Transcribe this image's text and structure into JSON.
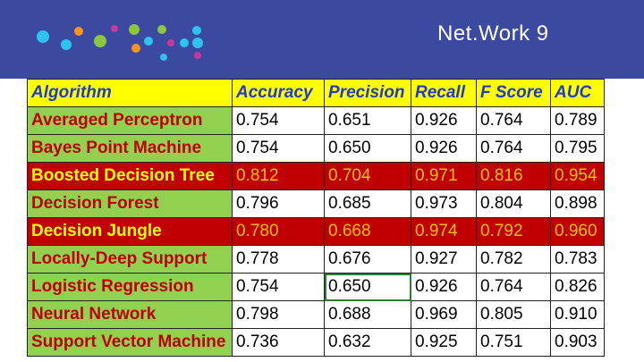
{
  "slide": {
    "title": "Net.Work 9",
    "dot_colors": [
      "#2ec4ef",
      "#2ec4ef",
      "#f7941d",
      "#8dc63f",
      "#c43b9b",
      "#8dc63f",
      "#f7941d",
      "#2ec4ef",
      "#8dc63f",
      "#2ec4ef",
      "#c43b9b",
      "#2ec4ef",
      "#2ec4ef",
      "#2ec4ef",
      "#c43b9b"
    ]
  },
  "table": {
    "headers": [
      "Algorithm",
      "Accuracy",
      "Precision",
      "Recall",
      "F Score",
      "AUC"
    ],
    "rows": [
      {
        "algorithm": "Averaged Perceptron",
        "accuracy": "0.754",
        "precision": "0.651",
        "recall": "0.926",
        "fscore": "0.764",
        "auc": "0.789"
      },
      {
        "algorithm": "Bayes Point Machine",
        "accuracy": "0.754",
        "precision": "0.650",
        "recall": "0.926",
        "fscore": "0.764",
        "auc": "0.795"
      },
      {
        "algorithm": "Boosted Decision Tree",
        "accuracy": "0.812",
        "precision": "0.704",
        "recall": "0.971",
        "fscore": "0.816",
        "auc": "0.954"
      },
      {
        "algorithm": "Decision Forest",
        "accuracy": "0.796",
        "precision": "0.685",
        "recall": "0.973",
        "fscore": "0.804",
        "auc": "0.898"
      },
      {
        "algorithm": "Decision Jungle",
        "accuracy": "0.780",
        "precision": "0.668",
        "recall": "0.974",
        "fscore": "0.792",
        "auc": "0.960"
      },
      {
        "algorithm": "Locally-Deep Support",
        "accuracy": "0.778",
        "precision": "0.676",
        "recall": "0.927",
        "fscore": "0.782",
        "auc": "0.783"
      },
      {
        "algorithm": "Logistic Regression",
        "accuracy": "0.754",
        "precision": "0.650",
        "recall": "0.926",
        "fscore": "0.764",
        "auc": "0.826"
      },
      {
        "algorithm": "Neural Network",
        "accuracy": "0.798",
        "precision": "0.688",
        "recall": "0.969",
        "fscore": "0.805",
        "auc": "0.910"
      },
      {
        "algorithm": "Support Vector Machine",
        "accuracy": "0.736",
        "precision": "0.632",
        "recall": "0.925",
        "fscore": "0.751",
        "auc": "0.903"
      }
    ]
  }
}
